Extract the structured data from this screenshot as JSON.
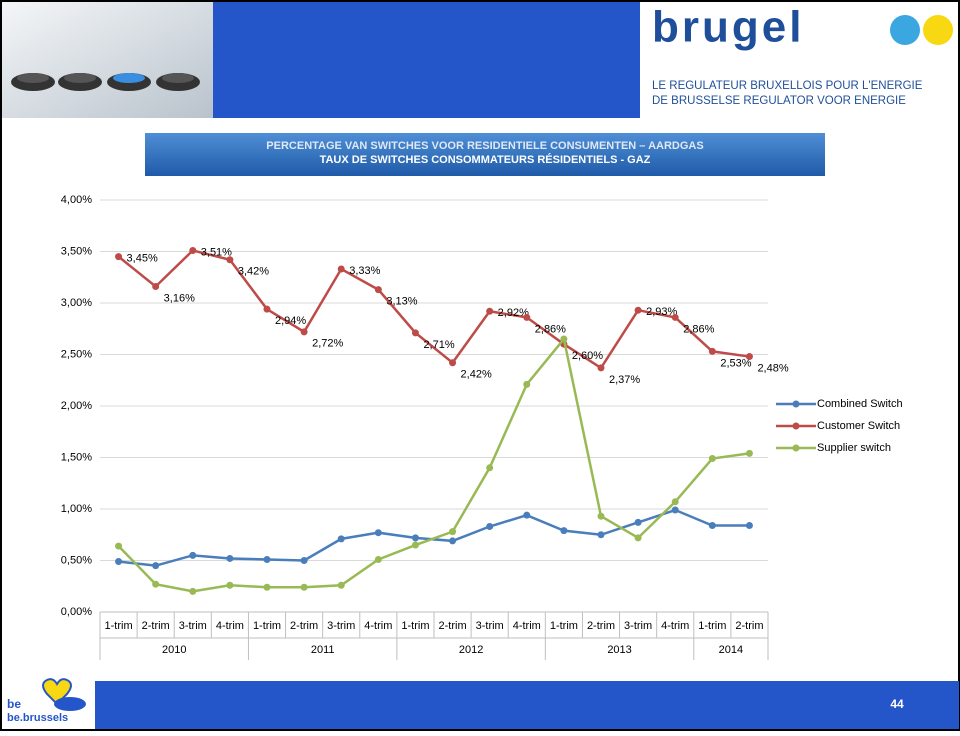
{
  "header": {
    "logo": "brugel",
    "tagline_1": "LE REGULATEUR BRUXELLOIS POUR L'ENERGIE",
    "tagline_2": "DE BRUSSELSE REGULATOR VOOR ENERGIE"
  },
  "chart_data": {
    "type": "line",
    "title": "PERCENTAGE VAN SWITCHES VOOR RESIDENTIELE CONSUMENTEN – AARDGAS",
    "subtitle": "TAUX DE SWITCHES CONSOMMATEURS RÉSIDENTIELS - GAZ",
    "groups": [
      {
        "name": "2010",
        "categories": [
          "1-trim",
          "2-trim",
          "3-trim",
          "4-trim"
        ]
      },
      {
        "name": "2011",
        "categories": [
          "1-trim",
          "2-trim",
          "3-trim",
          "4-trim"
        ]
      },
      {
        "name": "2012",
        "categories": [
          "1-trim",
          "2-trim",
          "3-trim",
          "4-trim"
        ]
      },
      {
        "name": "2013",
        "categories": [
          "1-trim",
          "2-trim",
          "3-trim",
          "4-trim"
        ]
      },
      {
        "name": "2014",
        "categories": [
          "1-trim",
          "2-trim"
        ]
      }
    ],
    "ylim": [
      0,
      4
    ],
    "yticks": [
      {
        "value": 0,
        "label": "0,00%"
      },
      {
        "value": 0.5,
        "label": "0,50%"
      },
      {
        "value": 1,
        "label": "1,00%"
      },
      {
        "value": 1.5,
        "label": "1,50%"
      },
      {
        "value": 2,
        "label": "2,00%"
      },
      {
        "value": 2.5,
        "label": "2,50%"
      },
      {
        "value": 3,
        "label": "3,00%"
      },
      {
        "value": 3.5,
        "label": "3,50%"
      },
      {
        "value": 4,
        "label": "4,00%"
      }
    ],
    "grid": true,
    "legend": "right",
    "series": [
      {
        "name": "Combined Switch",
        "color": "#4a7ebb",
        "values": [
          0.49,
          0.45,
          0.55,
          0.52,
          0.51,
          0.5,
          0.71,
          0.77,
          0.72,
          0.69,
          0.83,
          0.94,
          0.79,
          0.75,
          0.87,
          0.99,
          0.84,
          0.84
        ]
      },
      {
        "name": "Customer Switch",
        "color": "#be4b48",
        "values": [
          3.45,
          3.16,
          3.51,
          3.42,
          2.94,
          2.72,
          3.33,
          3.13,
          2.71,
          2.42,
          2.92,
          2.86,
          2.6,
          2.37,
          2.93,
          2.86,
          2.53,
          2.48
        ],
        "value_labels": [
          "3,45%",
          "3,16%",
          "3,51%",
          "3,42%",
          "2,94%",
          "2,72%",
          "3,33%",
          "3,13%",
          "2,71%",
          "2,42%",
          "2,92%",
          "2,86%",
          "2,60%",
          "2,37%",
          "2,93%",
          "2,86%",
          "2,53%",
          "2,48%"
        ]
      },
      {
        "name": "Supplier switch",
        "color": "#98b954",
        "values": [
          0.64,
          0.27,
          0.2,
          0.26,
          0.24,
          0.24,
          0.26,
          0.51,
          0.65,
          0.78,
          1.4,
          2.21,
          2.65,
          0.93,
          0.72,
          1.07,
          1.49,
          1.54
        ]
      }
    ]
  },
  "footer": {
    "brand_1": "be",
    "brand_2": "be.brussels",
    "page_number": "44"
  }
}
